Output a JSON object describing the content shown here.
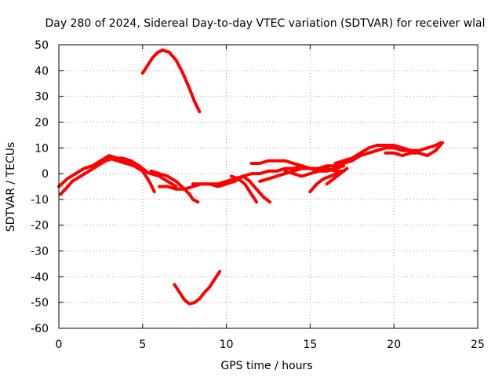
{
  "chart_data": {
    "type": "scatter",
    "title": "Day 280 of 2024, Sidereal Day-to-day VTEC variation (SDTVAR) for receiver wlal",
    "xlabel": "GPS time / hours",
    "ylabel": "SDTVAR / TECUs",
    "xlim": [
      0,
      25
    ],
    "ylim": [
      -60,
      50
    ],
    "xticks": [
      0,
      5,
      10,
      15,
      20,
      25
    ],
    "yticks": [
      -60,
      -50,
      -40,
      -30,
      -20,
      -10,
      0,
      10,
      20,
      30,
      40,
      50
    ],
    "grid": true,
    "color": "#ff0000",
    "series": [
      {
        "name": "track-1",
        "x": [
          0.0,
          0.5,
          1.0,
          1.5,
          2.0,
          2.5,
          3.0,
          3.5,
          4.0,
          4.5,
          5.0,
          5.4,
          5.7
        ],
        "y": [
          -5,
          -2,
          0,
          2,
          3,
          5,
          7,
          6,
          5,
          3,
          1,
          -3,
          -7
        ]
      },
      {
        "name": "track-2",
        "x": [
          0.1,
          0.4,
          0.8,
          1.3,
          1.8,
          2.3,
          2.8,
          3.3,
          3.8,
          4.3,
          4.8,
          5.2
        ],
        "y": [
          -8,
          -6,
          -3,
          -1,
          1,
          3,
          5,
          6,
          6,
          5,
          3,
          1
        ]
      },
      {
        "name": "track-3",
        "x": [
          3.0,
          3.5,
          4.0,
          4.5,
          5.0,
          5.5,
          6.0,
          6.5,
          7.0
        ],
        "y": [
          6,
          5,
          4,
          3,
          1,
          0,
          -1,
          -3,
          -5
        ]
      },
      {
        "name": "track-4",
        "x": [
          5.5,
          6.0,
          6.5,
          7.0,
          7.5,
          7.8,
          8.0,
          8.3
        ],
        "y": [
          1,
          0,
          -1,
          -3,
          -6,
          -8,
          -10,
          -11
        ]
      },
      {
        "name": "track-5",
        "x": [
          6.0,
          6.5,
          7.0,
          7.5,
          8.0,
          8.5,
          9.0,
          9.5,
          10.0,
          10.5,
          11.0
        ],
        "y": [
          -5,
          -5,
          -6,
          -6,
          -5,
          -4,
          -4,
          -4,
          -3,
          -2,
          -1
        ]
      },
      {
        "name": "track-6",
        "x": [
          8.0,
          8.5,
          9.0,
          9.5,
          10.0,
          10.5,
          11.0,
          11.5,
          12.0,
          12.5,
          13.0,
          13.5,
          14.0,
          14.5,
          15.0,
          15.5,
          16.0,
          16.5,
          17.0
        ],
        "y": [
          -4,
          -4,
          -4,
          -5,
          -4,
          -3,
          -1,
          0,
          0,
          1,
          1,
          2,
          2,
          3,
          2,
          2,
          2,
          1,
          1
        ]
      },
      {
        "name": "track-7",
        "x": [
          10.3,
          10.7,
          11.1,
          11.5,
          11.8
        ],
        "y": [
          -1,
          -2,
          -4,
          -8,
          -11
        ]
      },
      {
        "name": "track-8",
        "x": [
          11.0,
          11.4,
          11.8,
          12.2,
          12.6
        ],
        "y": [
          -1,
          -3,
          -6,
          -9,
          -11
        ]
      },
      {
        "name": "track-9",
        "x": [
          11.5,
          12.0,
          12.5,
          13.0,
          13.5,
          14.0,
          14.5,
          15.0
        ],
        "y": [
          4,
          4,
          5,
          5,
          5,
          4,
          3,
          2
        ]
      },
      {
        "name": "track-10",
        "x": [
          12.0,
          12.5,
          13.0,
          13.5,
          14.0,
          14.5,
          15.0,
          15.5
        ],
        "y": [
          -3,
          -2,
          -1,
          0,
          1,
          2,
          2,
          1
        ]
      },
      {
        "name": "track-11",
        "x": [
          13.5,
          14.0,
          14.5,
          15.0,
          15.5,
          16.0,
          16.5,
          17.0
        ],
        "y": [
          1,
          0,
          -1,
          0,
          1,
          1,
          2,
          3
        ]
      },
      {
        "name": "track-12",
        "x": [
          15.0,
          15.4,
          15.8,
          16.2,
          16.6,
          17.0
        ],
        "y": [
          -7,
          -4,
          -2,
          -1,
          0,
          1
        ]
      },
      {
        "name": "track-13",
        "x": [
          16.0,
          16.4,
          16.8,
          17.2
        ],
        "y": [
          -4,
          -2,
          0,
          2
        ]
      },
      {
        "name": "track-14",
        "x": [
          15.5,
          16.0,
          16.5,
          17.0,
          17.5,
          18.0,
          18.5,
          19.0,
          19.5,
          20.0,
          20.5,
          21.0
        ],
        "y": [
          2,
          3,
          3,
          4,
          5,
          7,
          8,
          9,
          10,
          10,
          10,
          9
        ]
      },
      {
        "name": "track-15",
        "x": [
          16.5,
          17.0,
          17.5,
          18.0,
          18.5,
          19.0,
          19.5,
          20.0,
          20.5,
          21.0
        ],
        "y": [
          4,
          5,
          6,
          8,
          10,
          11,
          11,
          11,
          10,
          9
        ]
      },
      {
        "name": "track-16",
        "x": [
          19.5,
          20.0,
          20.5,
          21.0,
          21.5,
          22.0,
          22.5,
          22.9
        ],
        "y": [
          8,
          8,
          7,
          8,
          8,
          7,
          9,
          12
        ]
      },
      {
        "name": "track-17",
        "x": [
          20.0,
          20.5,
          21.0,
          21.5,
          22.0,
          22.5,
          22.8
        ],
        "y": [
          10,
          9,
          9,
          9,
          10,
          11,
          12
        ]
      },
      {
        "name": "track-18",
        "x": [
          5.0,
          5.3,
          5.6,
          5.9,
          6.2,
          6.6,
          7.0,
          7.4,
          7.8,
          8.1,
          8.4
        ],
        "y": [
          39,
          42,
          45,
          47,
          48,
          47,
          44,
          39,
          33,
          28,
          24
        ]
      },
      {
        "name": "track-19",
        "x": [
          6.9,
          7.2,
          7.5,
          7.8,
          8.1,
          8.4,
          8.7,
          9.0,
          9.3,
          9.6
        ],
        "y": [
          -43,
          -46,
          -49,
          -50.5,
          -50,
          -48.5,
          -46,
          -44,
          -41,
          -38
        ]
      }
    ]
  }
}
